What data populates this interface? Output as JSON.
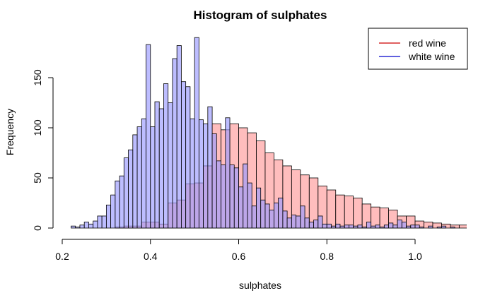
{
  "chart_data": {
    "type": "bar",
    "subtype": "overlaid-histogram",
    "title": "Histogram of sulphates",
    "xlabel": "sulphates",
    "ylabel": "Frequency",
    "xlim": [
      0.2,
      1.12
    ],
    "ylim": [
      0,
      190
    ],
    "x_ticks": [
      "0.2",
      "0.4",
      "0.6",
      "0.8",
      "1.0"
    ],
    "y_ticks": [
      "0",
      "50",
      "100",
      "150"
    ],
    "grid": false,
    "legend": {
      "position": "top-right"
    },
    "series": [
      {
        "name": "red wine",
        "legend_color": "#cc0000",
        "fill": "#ff9999",
        "opacity": 0.65,
        "bin_width": 0.02,
        "bins": [
          [
            0.32,
            1
          ],
          [
            0.34,
            2
          ],
          [
            0.36,
            2
          ],
          [
            0.38,
            6
          ],
          [
            0.4,
            6
          ],
          [
            0.42,
            4
          ],
          [
            0.44,
            25
          ],
          [
            0.46,
            28
          ],
          [
            0.48,
            44
          ],
          [
            0.5,
            45
          ],
          [
            0.52,
            62
          ],
          [
            0.54,
            104
          ],
          [
            0.56,
            98
          ],
          [
            0.58,
            104
          ],
          [
            0.6,
            100
          ],
          [
            0.62,
            95
          ],
          [
            0.64,
            87
          ],
          [
            0.66,
            75
          ],
          [
            0.68,
            68
          ],
          [
            0.7,
            62
          ],
          [
            0.72,
            58
          ],
          [
            0.74,
            53
          ],
          [
            0.76,
            50
          ],
          [
            0.78,
            42
          ],
          [
            0.8,
            38
          ],
          [
            0.82,
            33
          ],
          [
            0.84,
            32
          ],
          [
            0.86,
            30
          ],
          [
            0.88,
            24
          ],
          [
            0.9,
            21
          ],
          [
            0.92,
            20
          ],
          [
            0.94,
            18
          ],
          [
            0.96,
            12
          ],
          [
            0.98,
            12
          ],
          [
            1.0,
            7
          ],
          [
            1.02,
            6
          ],
          [
            1.04,
            5
          ],
          [
            1.06,
            4
          ],
          [
            1.08,
            3
          ],
          [
            1.1,
            3
          ]
        ]
      },
      {
        "name": "white wine",
        "legend_color": "#0000cc",
        "fill": "#9999ff",
        "opacity": 0.65,
        "bin_width": 0.01,
        "bins": [
          [
            0.22,
            2
          ],
          [
            0.23,
            1
          ],
          [
            0.24,
            3
          ],
          [
            0.25,
            6
          ],
          [
            0.26,
            4
          ],
          [
            0.27,
            7
          ],
          [
            0.28,
            12
          ],
          [
            0.29,
            12
          ],
          [
            0.3,
            23
          ],
          [
            0.31,
            33
          ],
          [
            0.32,
            47
          ],
          [
            0.33,
            52
          ],
          [
            0.34,
            70
          ],
          [
            0.35,
            78
          ],
          [
            0.36,
            93
          ],
          [
            0.37,
            101
          ],
          [
            0.38,
            109
          ],
          [
            0.39,
            183
          ],
          [
            0.4,
            101
          ],
          [
            0.41,
            126
          ],
          [
            0.42,
            119
          ],
          [
            0.43,
            144
          ],
          [
            0.44,
            125
          ],
          [
            0.45,
            169
          ],
          [
            0.46,
            182
          ],
          [
            0.47,
            146
          ],
          [
            0.48,
            141
          ],
          [
            0.49,
            109
          ],
          [
            0.5,
            190
          ],
          [
            0.51,
            108
          ],
          [
            0.52,
            104
          ],
          [
            0.53,
            121
          ],
          [
            0.54,
            94
          ],
          [
            0.55,
            67
          ],
          [
            0.56,
            63
          ],
          [
            0.57,
            110
          ],
          [
            0.58,
            63
          ],
          [
            0.59,
            60
          ],
          [
            0.6,
            41
          ],
          [
            0.61,
            64
          ],
          [
            0.62,
            45
          ],
          [
            0.63,
            22
          ],
          [
            0.64,
            40
          ],
          [
            0.65,
            28
          ],
          [
            0.66,
            24
          ],
          [
            0.67,
            18
          ],
          [
            0.68,
            25
          ],
          [
            0.69,
            30
          ],
          [
            0.7,
            17
          ],
          [
            0.71,
            10
          ],
          [
            0.72,
            13
          ],
          [
            0.73,
            12
          ],
          [
            0.74,
            22
          ],
          [
            0.75,
            10
          ],
          [
            0.76,
            6
          ],
          [
            0.77,
            8
          ],
          [
            0.78,
            12
          ],
          [
            0.79,
            4
          ],
          [
            0.8,
            4
          ],
          [
            0.81,
            2
          ],
          [
            0.82,
            4
          ],
          [
            0.83,
            2
          ],
          [
            0.84,
            3
          ],
          [
            0.85,
            3
          ],
          [
            0.86,
            2
          ],
          [
            0.87,
            3
          ],
          [
            0.88,
            1
          ],
          [
            0.89,
            6
          ],
          [
            0.9,
            2
          ],
          [
            0.91,
            3
          ],
          [
            0.92,
            1
          ],
          [
            0.93,
            3
          ],
          [
            0.94,
            5
          ],
          [
            0.95,
            3
          ],
          [
            0.96,
            8
          ],
          [
            0.97,
            6
          ],
          [
            0.98,
            2
          ],
          [
            0.99,
            3
          ],
          [
            1.0,
            3
          ],
          [
            1.01,
            1
          ],
          [
            1.03,
            2
          ],
          [
            1.05,
            1
          ],
          [
            1.06,
            2
          ],
          [
            1.08,
            1
          ]
        ]
      }
    ]
  }
}
